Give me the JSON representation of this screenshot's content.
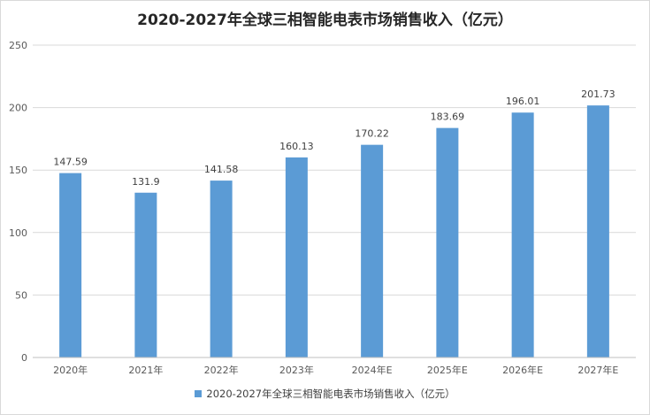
{
  "chart_data": {
    "type": "bar",
    "title": "2020-2027年全球三相智能电表市场销售收入（亿元）",
    "categories": [
      "2020年",
      "2021年",
      "2022年",
      "2023年",
      "2024年E",
      "2025年E",
      "2026年E",
      "2027年E"
    ],
    "series": [
      {
        "name": "2020-2027年全球三相智能电表市场销售收入（亿元）",
        "values": [
          147.59,
          131.9,
          141.58,
          160.13,
          170.22,
          183.69,
          196.01,
          201.73
        ],
        "labels": [
          "147.59",
          "131.9",
          "141.58",
          "160.13",
          "170.22",
          "183.69",
          "196.01",
          "201.73"
        ]
      }
    ],
    "ylim": [
      0,
      250
    ],
    "yticks": [
      0,
      50,
      100,
      150,
      200,
      250
    ],
    "xlabel": "",
    "ylabel": "",
    "grid": true,
    "legend_position": "bottom",
    "bar_color": "#5b9bd5"
  }
}
